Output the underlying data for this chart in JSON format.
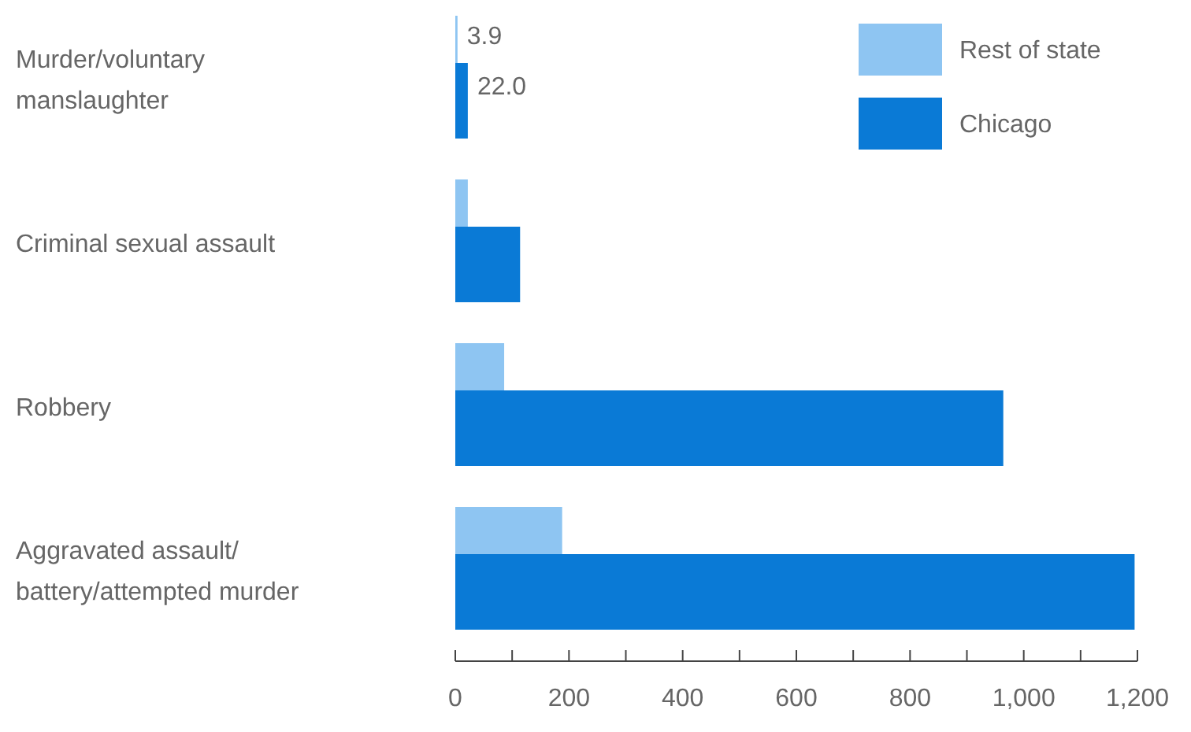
{
  "chart_data": {
    "type": "bar",
    "orientation": "horizontal",
    "categories": [
      "Murder/voluntary manslaughter",
      "Criminal sexual assault",
      "Robbery",
      "Aggravated assault/ battery/attempted murder"
    ],
    "series": [
      {
        "name": "Rest of state",
        "color": "#8ec5f2",
        "values": [
          3.9,
          22,
          86,
          188
        ],
        "value_labels": [
          "3.9",
          null,
          null,
          null
        ]
      },
      {
        "name": "Chicago",
        "color": "#0a7ad6",
        "values": [
          22.0,
          114,
          964,
          1195
        ],
        "value_labels": [
          "22.0",
          null,
          null,
          null
        ]
      }
    ],
    "xlim": [
      0,
      1200
    ],
    "xticks": [
      0,
      {
        "value": 100,
        "label": null
      },
      200,
      {
        "value": 300,
        "label": null
      },
      400,
      {
        "value": 500,
        "label": null
      },
      600,
      {
        "value": 700,
        "label": null
      },
      800,
      {
        "value": 900,
        "label": null
      },
      {
        "value": 1000,
        "label": "1,000"
      },
      {
        "value": 1100,
        "label": null
      },
      {
        "value": 1200,
        "label": "1,200"
      }
    ],
    "legend": "top right",
    "grid": false
  }
}
